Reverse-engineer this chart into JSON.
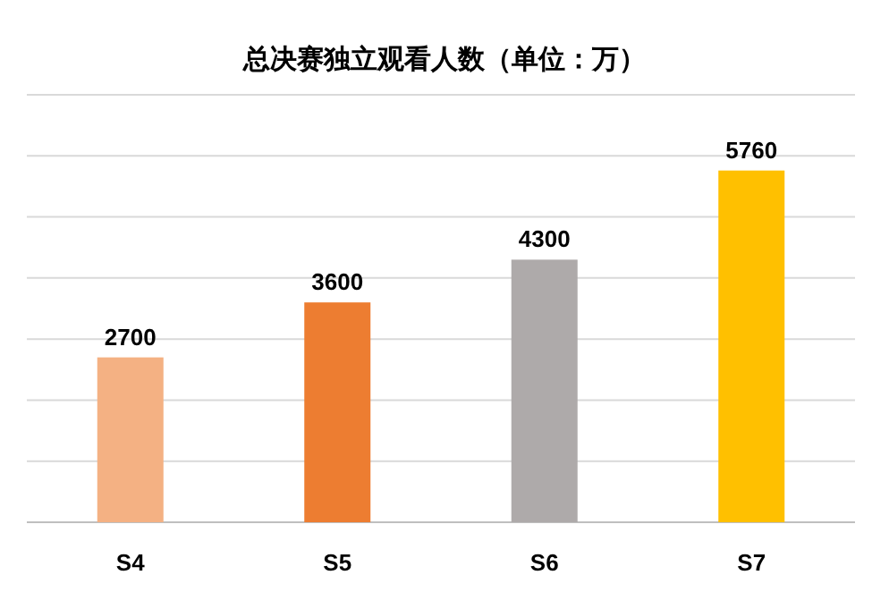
{
  "chart_data": {
    "type": "bar",
    "title": "总决赛独立观看人数（单位：万）",
    "categories": [
      "S4",
      "S5",
      "S6",
      "S7"
    ],
    "values": [
      2700,
      3600,
      4300,
      5760
    ],
    "colors": [
      "#f4b183",
      "#ed7d31",
      "#aeaaaa",
      "#ffc000"
    ],
    "ylim": [
      0,
      7000
    ],
    "yticks": [
      {
        "value": 0,
        "label": null
      },
      {
        "value": 1000,
        "label": null
      },
      {
        "value": 2000,
        "label": null
      },
      {
        "value": 3000,
        "label": null
      },
      {
        "value": 4000,
        "label": null
      },
      {
        "value": 5000,
        "label": null
      },
      {
        "value": 6000,
        "label": null
      },
      {
        "value": 7000,
        "label": null
      }
    ],
    "grid": "y",
    "data_labels": true,
    "tick_labels": "x"
  }
}
